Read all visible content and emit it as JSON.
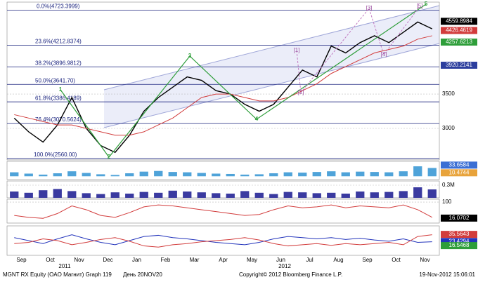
{
  "chart_data": [
    {
      "type": "line",
      "categories": [
        "Sep",
        null,
        "Oct",
        null,
        "Nov",
        null,
        "Dec",
        null,
        "Jan",
        null,
        "Feb",
        null,
        "Mar",
        null,
        "Apr",
        null,
        "May",
        null,
        "Jun",
        null,
        "Jul",
        null,
        "Aug",
        null,
        "Sep",
        null,
        "Oct",
        null,
        "Nov",
        null
      ],
      "years": [
        "2011",
        "2012"
      ],
      "ylim": [
        2540,
        4840
      ],
      "yticks": [
        3000,
        3500
      ],
      "grid": true,
      "series": [
        {
          "color": "#000000",
          "values": [
            3150,
            2950,
            2800,
            3050,
            3450,
            3000,
            2750,
            2650,
            2900,
            3250,
            3450,
            3600,
            3750,
            3700,
            3550,
            3500,
            3350,
            3250,
            3350,
            3600,
            3850,
            3750,
            4200,
            4100,
            4250,
            4350,
            4250,
            4400,
            4550,
            4450
          ]
        },
        {
          "color": "#d23c3c",
          "values": [
            3200,
            3150,
            3100,
            3050,
            3050,
            3000,
            2950,
            2900,
            2900,
            2950,
            3050,
            3150,
            3300,
            3450,
            3500,
            3500,
            3450,
            3400,
            3400,
            3450,
            3550,
            3650,
            3800,
            3900,
            4000,
            4100,
            4150,
            4200,
            4300,
            4350
          ]
        }
      ],
      "fib": [
        {
          "label": "0.0%(4723.3999)",
          "value": 4723.3999
        },
        {
          "label": "23.6%(4212.8374)",
          "value": 4212.8374
        },
        {
          "label": "38.2%(3896.9812)",
          "value": 3896.9812
        },
        {
          "label": "50.0%(3641.70)",
          "value": 3641.7
        },
        {
          "label": "61.8%(3386.4189)",
          "value": 3386.4189
        },
        {
          "label": "76.4%(3070.5624)",
          "value": 3070.5624
        },
        {
          "label": "100.0%(2560.00)",
          "value": 2560
        }
      ],
      "waves": [
        "1",
        "2",
        "3",
        "4",
        "5"
      ],
      "subwaves": [
        "[1]",
        "[2]",
        "[3]",
        "[4]",
        "[5]"
      ],
      "markers": [
        {
          "value": 4559.8984,
          "color": "#000000"
        },
        {
          "value": 4426.4619,
          "color": "#d23c3c"
        },
        {
          "value": 4257.6213,
          "color": "#2e9e3a"
        },
        {
          "value": 3920.2141,
          "color": "#2c3e9e"
        }
      ]
    },
    {
      "type": "bar",
      "ylim": [
        -10,
        45
      ],
      "series": [
        {
          "color": "#4fa3d9",
          "values": [
            12,
            8,
            5,
            9,
            15,
            10,
            6,
            4,
            9,
            14,
            16,
            13,
            12,
            10,
            8,
            7,
            5,
            6,
            9,
            12,
            11,
            13,
            15,
            12,
            14,
            13,
            12,
            15,
            30,
            25
          ]
        }
      ],
      "markers": [
        {
          "value": 33.6584,
          "color": "#3b6fd4"
        },
        {
          "value": 10.4744,
          "color": "#e8a33b"
        }
      ]
    },
    {
      "type": "bar",
      "ylim": [
        0,
        400000
      ],
      "yticks": [
        {
          "value": 300000,
          "label": "0.3M"
        }
      ],
      "series": [
        {
          "color": "#3a3aa0",
          "values": [
            150000,
            120000,
            180000,
            210000,
            160000,
            110000,
            90000,
            130000,
            100000,
            140000,
            120000,
            170000,
            150000,
            130000,
            110000,
            100000,
            160000,
            120000,
            90000,
            140000,
            130000,
            110000,
            120000,
            100000,
            150000,
            130000,
            140000,
            160000,
            250000,
            200000
          ]
        }
      ]
    },
    {
      "type": "line",
      "ylim": [
        -10,
        115
      ],
      "yticks": [
        100
      ],
      "series": [
        {
          "color": "#d23c3c",
          "values": [
            30,
            20,
            15,
            40,
            80,
            60,
            30,
            20,
            45,
            75,
            85,
            80,
            70,
            60,
            50,
            40,
            30,
            35,
            60,
            80,
            70,
            75,
            85,
            70,
            80,
            75,
            70,
            85,
            60,
            20
          ]
        }
      ],
      "markers": [
        {
          "value": 16.0702,
          "color": "#000000"
        }
      ]
    },
    {
      "type": "line",
      "ylim": [
        0,
        50
      ],
      "series": [
        {
          "color": "#2233bb",
          "values": [
            30,
            25,
            20,
            28,
            35,
            28,
            22,
            18,
            25,
            32,
            34,
            30,
            28,
            25,
            22,
            20,
            18,
            22,
            28,
            32,
            30,
            28,
            30,
            27,
            29,
            26,
            24,
            28,
            22,
            23
          ]
        },
        {
          "color": "#d23c3c",
          "values": [
            20,
            22,
            28,
            25,
            18,
            22,
            27,
            30,
            24,
            16,
            14,
            18,
            20,
            23,
            25,
            27,
            30,
            26,
            20,
            16,
            18,
            20,
            17,
            20,
            18,
            20,
            22,
            18,
            32,
            35
          ]
        }
      ],
      "markers": [
        {
          "value": 35.5643,
          "color": "#d23c3c"
        },
        {
          "value": 23.4294,
          "color": "#2233bb"
        },
        {
          "value": 16.5468,
          "color": "#2e9e3a"
        }
      ]
    }
  ],
  "footer": {
    "left": "MGNT RX Equity (OAO Магнит) Graph 119",
    "day": "День 20NOV20",
    "copyright": "Copyright© 2012 Bloomberg Finance L.P.",
    "timestamp": "19-Nov-2012 15:06:01"
  }
}
